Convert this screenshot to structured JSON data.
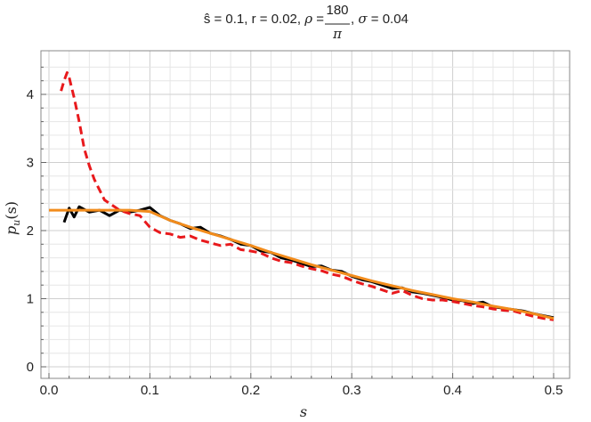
{
  "chart_data": {
    "type": "line",
    "title": {
      "part1": "ŝ = 0.1, r = 0.02, ",
      "rho": "ρ",
      "eq": " = ",
      "frac_num": "180",
      "frac_den": "π",
      "part2": ", ",
      "sigma": "σ",
      "part3": " = 0.04"
    },
    "xlabel": "s",
    "ylabel": {
      "p": "p",
      "sub": "u",
      "arg": "(s)"
    },
    "xlim": [
      0.0,
      0.5
    ],
    "ylim": [
      0,
      4.4
    ],
    "xticks": [
      "0.0",
      "0.1",
      "0.2",
      "0.3",
      "0.4",
      "0.5"
    ],
    "yticks": [
      "0",
      "1",
      "2",
      "3",
      "4"
    ],
    "grid": true,
    "colors": {
      "black_series": "#000000",
      "red_series": "#e8191c",
      "orange_series": "#f28c1c",
      "grid": "#d0d0d0"
    },
    "series": [
      {
        "style": "solid-black",
        "x": [
          0.015,
          0.02,
          0.025,
          0.03,
          0.04,
          0.05,
          0.06,
          0.07,
          0.08,
          0.09,
          0.1,
          0.11,
          0.12,
          0.13,
          0.14,
          0.15,
          0.16,
          0.17,
          0.18,
          0.19,
          0.2,
          0.21,
          0.22,
          0.23,
          0.24,
          0.25,
          0.26,
          0.27,
          0.28,
          0.29,
          0.3,
          0.31,
          0.32,
          0.33,
          0.34,
          0.35,
          0.36,
          0.37,
          0.38,
          0.39,
          0.4,
          0.41,
          0.42,
          0.43,
          0.44,
          0.45,
          0.46,
          0.47,
          0.48,
          0.49,
          0.5
        ],
        "y": [
          2.12,
          2.33,
          2.2,
          2.35,
          2.27,
          2.3,
          2.22,
          2.3,
          2.27,
          2.3,
          2.34,
          2.22,
          2.15,
          2.1,
          2.03,
          2.05,
          1.96,
          1.92,
          1.87,
          1.8,
          1.78,
          1.7,
          1.68,
          1.6,
          1.57,
          1.52,
          1.47,
          1.48,
          1.42,
          1.4,
          1.33,
          1.28,
          1.25,
          1.2,
          1.15,
          1.16,
          1.1,
          1.08,
          1.05,
          1.02,
          0.98,
          0.97,
          0.93,
          0.95,
          0.88,
          0.86,
          0.84,
          0.82,
          0.78,
          0.75,
          0.72
        ]
      },
      {
        "style": "dashed-red",
        "x": [
          0.012,
          0.015,
          0.018,
          0.02,
          0.025,
          0.03,
          0.035,
          0.04,
          0.045,
          0.05,
          0.055,
          0.06,
          0.07,
          0.08,
          0.09,
          0.1,
          0.11,
          0.12,
          0.13,
          0.14,
          0.15,
          0.16,
          0.17,
          0.18,
          0.19,
          0.2,
          0.21,
          0.22,
          0.23,
          0.24,
          0.25,
          0.26,
          0.27,
          0.28,
          0.29,
          0.3,
          0.31,
          0.32,
          0.33,
          0.34,
          0.35,
          0.36,
          0.37,
          0.38,
          0.39,
          0.4,
          0.41,
          0.42,
          0.43,
          0.44,
          0.45,
          0.46,
          0.47,
          0.48,
          0.49,
          0.5
        ],
        "y": [
          4.05,
          4.2,
          4.32,
          4.25,
          3.95,
          3.6,
          3.2,
          2.95,
          2.75,
          2.6,
          2.45,
          2.4,
          2.3,
          2.25,
          2.22,
          2.05,
          1.97,
          1.95,
          1.9,
          1.92,
          1.86,
          1.82,
          1.78,
          1.8,
          1.72,
          1.7,
          1.67,
          1.6,
          1.55,
          1.53,
          1.48,
          1.44,
          1.41,
          1.36,
          1.33,
          1.27,
          1.22,
          1.18,
          1.13,
          1.08,
          1.12,
          1.05,
          1.0,
          0.98,
          0.98,
          0.96,
          0.93,
          0.9,
          0.88,
          0.85,
          0.83,
          0.82,
          0.78,
          0.74,
          0.71,
          0.69
        ]
      },
      {
        "style": "solid-orange",
        "x": [
          0.0,
          0.02,
          0.04,
          0.06,
          0.08,
          0.1,
          0.12,
          0.14,
          0.16,
          0.18,
          0.2,
          0.22,
          0.24,
          0.26,
          0.28,
          0.3,
          0.32,
          0.34,
          0.36,
          0.38,
          0.4,
          0.42,
          0.44,
          0.46,
          0.48,
          0.5
        ],
        "y": [
          2.3,
          2.3,
          2.3,
          2.3,
          2.3,
          2.28,
          2.15,
          2.05,
          1.96,
          1.87,
          1.78,
          1.68,
          1.59,
          1.5,
          1.42,
          1.34,
          1.26,
          1.19,
          1.12,
          1.06,
          1.0,
          0.95,
          0.89,
          0.84,
          0.78,
          0.71
        ]
      }
    ]
  }
}
